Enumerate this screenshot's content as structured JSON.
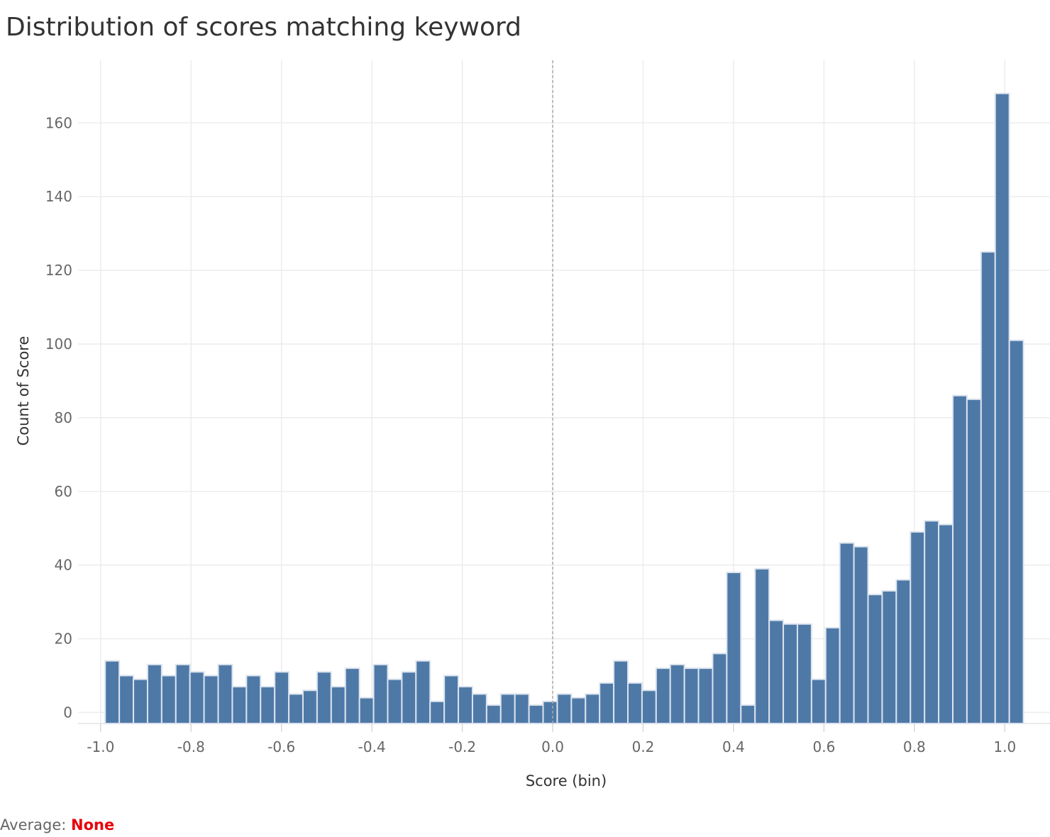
{
  "title": "Distribution of scores matching keyword",
  "footer": {
    "label": "Average: ",
    "value": "None"
  },
  "colors": {
    "bar": "#4e79a7",
    "bar_edge": "#dbe3ee",
    "gridline": "#ececec",
    "zero_line": "#aaaaaa",
    "footer_value": "#e8000b"
  },
  "chart_data": {
    "type": "bar",
    "xlabel": "Score (bin)",
    "ylabel": "Count of Score",
    "xlim": [
      -1.05,
      1.1
    ],
    "ylim": [
      -3,
      177
    ],
    "bin_width": 0.03125,
    "first_bin_start": -0.99,
    "x_ticks": [
      {
        "value": -1.0,
        "label": "-1.0"
      },
      {
        "value": -0.8,
        "label": "-0.8"
      },
      {
        "value": -0.6,
        "label": "-0.6"
      },
      {
        "value": -0.4,
        "label": "-0.4"
      },
      {
        "value": -0.2,
        "label": "-0.2"
      },
      {
        "value": 0.0,
        "label": "0.0"
      },
      {
        "value": 0.2,
        "label": "0.2"
      },
      {
        "value": 0.4,
        "label": "0.4"
      },
      {
        "value": 0.6,
        "label": "0.6"
      },
      {
        "value": 0.8,
        "label": "0.8"
      },
      {
        "value": 1.0,
        "label": "1.0"
      }
    ],
    "y_ticks": [
      {
        "value": 0,
        "label": "0"
      },
      {
        "value": 20,
        "label": "20"
      },
      {
        "value": 40,
        "label": "40"
      },
      {
        "value": 60,
        "label": "60"
      },
      {
        "value": 80,
        "label": "80"
      },
      {
        "value": 100,
        "label": "100"
      },
      {
        "value": 120,
        "label": "120"
      },
      {
        "value": 140,
        "label": "140"
      },
      {
        "value": 160,
        "label": "160"
      }
    ],
    "zero_reference_line": 0.0,
    "grid": true,
    "values": [
      14,
      10,
      9,
      13,
      10,
      13,
      11,
      10,
      13,
      7,
      10,
      7,
      11,
      5,
      6,
      11,
      7,
      12,
      4,
      13,
      9,
      11,
      14,
      3,
      10,
      7,
      5,
      2,
      5,
      5,
      2,
      3,
      5,
      4,
      5,
      8,
      14,
      8,
      6,
      12,
      13,
      12,
      12,
      16,
      38,
      2,
      39,
      25,
      24,
      24,
      9,
      23,
      46,
      45,
      32,
      33,
      36,
      49,
      52,
      51,
      86,
      85,
      125,
      168,
      101
    ]
  }
}
